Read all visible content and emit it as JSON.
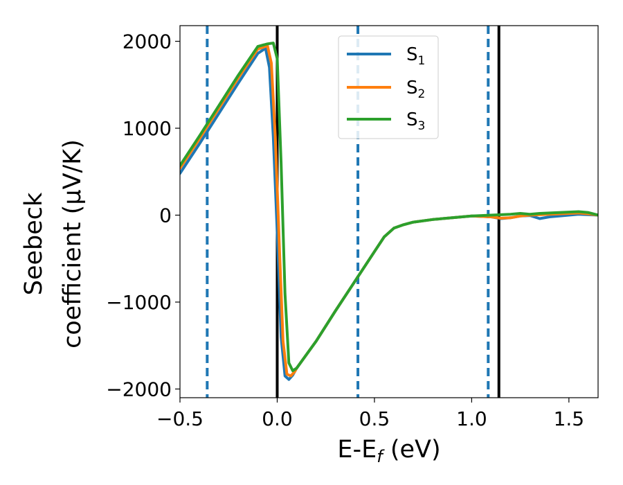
{
  "chart_data": {
    "type": "line",
    "title": "",
    "xlabel": {
      "main": "E-E",
      "sub": "f",
      "suffix": " (eV)"
    },
    "ylabel_lines": [
      "Seebeck",
      "coefficient  (μV/K)"
    ],
    "xlim": [
      -0.5,
      1.65
    ],
    "ylim": [
      -2100,
      2180
    ],
    "x_ticks": [
      -0.5,
      0.0,
      0.5,
      1.0,
      1.5
    ],
    "x_tick_labels": [
      "−0.5",
      "0.0",
      "0.5",
      "1.0",
      "1.5"
    ],
    "y_ticks": [
      -2000,
      -1000,
      0,
      1000,
      2000
    ],
    "y_tick_labels": [
      "−2000",
      "−1000",
      "0",
      "1000",
      "2000"
    ],
    "grid": false,
    "legend_position": "top-center",
    "vertical_lines": [
      {
        "x": -0.36,
        "style": "dashed",
        "color": "#1f77b4"
      },
      {
        "x": 0.0,
        "style": "solid",
        "color": "#000000"
      },
      {
        "x": 0.415,
        "style": "dashed",
        "color": "#1f77b4"
      },
      {
        "x": 1.085,
        "style": "dashed",
        "color": "#1f77b4"
      },
      {
        "x": 1.14,
        "style": "solid",
        "color": "#000000"
      }
    ],
    "series": [
      {
        "name": "S",
        "sub": "1",
        "color": "#1f77b4",
        "x": [
          -0.5,
          -0.4,
          -0.3,
          -0.2,
          -0.1,
          -0.06,
          -0.04,
          -0.02,
          0.0,
          0.02,
          0.04,
          0.06,
          0.08,
          0.1,
          0.2,
          0.3,
          0.4,
          0.5,
          0.55,
          0.6,
          0.65,
          0.7,
          0.8,
          0.9,
          1.0,
          1.1,
          1.15,
          1.2,
          1.25,
          1.3,
          1.35,
          1.4,
          1.5,
          1.55,
          1.6,
          1.65
        ],
        "y": [
          480,
          820,
          1170,
          1520,
          1860,
          1920,
          1700,
          900,
          -200,
          -1400,
          -1850,
          -1890,
          -1840,
          -1760,
          -1450,
          -1100,
          -760,
          -420,
          -250,
          -150,
          -110,
          -80,
          -50,
          -30,
          -10,
          -20,
          -40,
          -30,
          -10,
          -5,
          -40,
          -20,
          0,
          10,
          5,
          0
        ]
      },
      {
        "name": "S",
        "sub": "2",
        "color": "#ff7f0e",
        "x": [
          -0.5,
          -0.4,
          -0.3,
          -0.2,
          -0.1,
          -0.05,
          -0.03,
          -0.01,
          0.01,
          0.03,
          0.05,
          0.07,
          0.09,
          0.1,
          0.2,
          0.3,
          0.4,
          0.5,
          0.55,
          0.6,
          0.65,
          0.7,
          0.8,
          0.9,
          1.0,
          1.1,
          1.15,
          1.2,
          1.25,
          1.3,
          1.4,
          1.5,
          1.55,
          1.6,
          1.65
        ],
        "y": [
          540,
          880,
          1230,
          1580,
          1910,
          1950,
          1750,
          900,
          -300,
          -1450,
          -1830,
          -1850,
          -1800,
          -1760,
          -1450,
          -1100,
          -760,
          -420,
          -250,
          -150,
          -110,
          -80,
          -50,
          -30,
          -10,
          -20,
          -35,
          -30,
          -10,
          0,
          10,
          20,
          25,
          15,
          0
        ]
      },
      {
        "name": "S",
        "sub": "3",
        "color": "#2ca02c",
        "x": [
          -0.5,
          -0.4,
          -0.3,
          -0.2,
          -0.1,
          -0.05,
          -0.02,
          0.0,
          0.02,
          0.04,
          0.06,
          0.08,
          0.1,
          0.2,
          0.3,
          0.4,
          0.5,
          0.55,
          0.6,
          0.65,
          0.7,
          0.8,
          0.9,
          1.0,
          1.1,
          1.15,
          1.2,
          1.25,
          1.3,
          1.35,
          1.4,
          1.5,
          1.55,
          1.6,
          1.65
        ],
        "y": [
          570,
          910,
          1260,
          1610,
          1940,
          1970,
          1980,
          1800,
          600,
          -900,
          -1700,
          -1790,
          -1760,
          -1450,
          -1100,
          -760,
          -420,
          -250,
          -150,
          -110,
          -80,
          -50,
          -30,
          -10,
          0,
          5,
          10,
          20,
          10,
          20,
          25,
          35,
          40,
          30,
          0
        ]
      }
    ]
  }
}
